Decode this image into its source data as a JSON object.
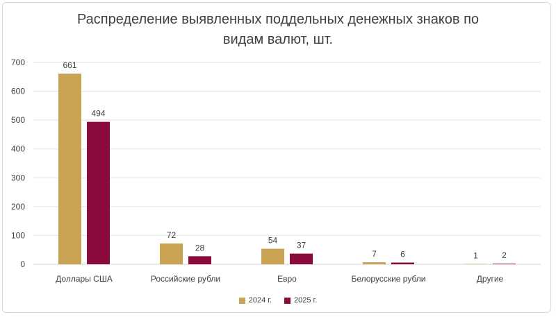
{
  "chart_data": {
    "type": "bar",
    "title_line1": "Распределение выявленных поддельных денежных знаков по",
    "title_line2": "видам валют, шт.",
    "categories": [
      "Доллары США",
      "Российские рубли",
      "Евро",
      "Белорусские рубли",
      "Другие"
    ],
    "series": [
      {
        "name": "2024 г.",
        "values": [
          661,
          72,
          54,
          7,
          1
        ],
        "color": "#c9a254"
      },
      {
        "name": "2025 г.",
        "values": [
          494,
          28,
          37,
          6,
          2
        ],
        "color": "#8b0a3e"
      }
    ],
    "ylim": [
      0,
      700
    ],
    "yticks": [
      0,
      100,
      200,
      300,
      400,
      500,
      600,
      700
    ],
    "grid": true,
    "legend": "bottom"
  }
}
